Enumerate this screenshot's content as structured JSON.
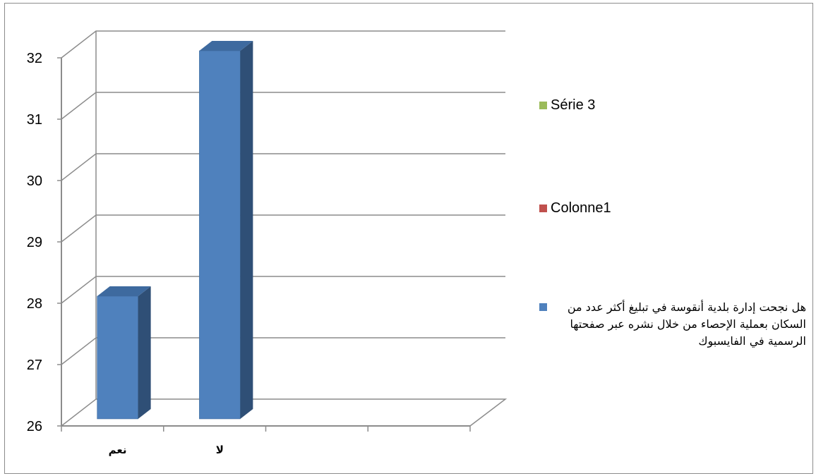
{
  "chart_data": {
    "type": "bar",
    "style": "3d-column",
    "categories": [
      "نعم",
      "لا",
      "",
      ""
    ],
    "series": [
      {
        "name": "هل نجحت إدارة بلدية أنقوسة في تبليغ أكثر عدد من السكان بعملية الإحصاء من خلال نشره عبر صفحتها الرسمية في الفايسبوك",
        "values": [
          28,
          32,
          null,
          null
        ],
        "color": "#4f81bd"
      },
      {
        "name": "Colonne1",
        "values": [
          null,
          null,
          null,
          null
        ],
        "color": "#c0504d"
      },
      {
        "name": "Série 3",
        "values": [
          null,
          null,
          null,
          null
        ],
        "color": "#9bbb59"
      }
    ],
    "ylim": [
      26,
      32
    ],
    "yticks": [
      "26",
      "27",
      "28",
      "29",
      "30",
      "31",
      "32"
    ],
    "grid": true,
    "legend_position": "right",
    "title": "",
    "xlabel": "",
    "ylabel": ""
  }
}
